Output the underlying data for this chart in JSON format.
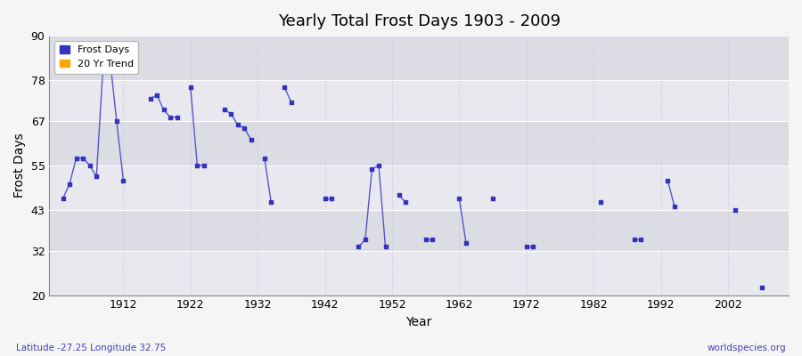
{
  "title": "Yearly Total Frost Days 1903 - 2009",
  "xlabel": "Year",
  "ylabel": "Frost Days",
  "lat_lon_label": "Latitude -27.25 Longitude 32.75",
  "watermark": "worldspecies.org",
  "ylim": [
    20,
    90
  ],
  "xlim": [
    1901,
    2011
  ],
  "yticks": [
    20,
    32,
    43,
    55,
    67,
    78,
    90
  ],
  "xticks": [
    1912,
    1922,
    1932,
    1942,
    1952,
    1962,
    1972,
    1982,
    1992,
    2002
  ],
  "line_color": "#5555cc",
  "marker_color": "#3333bb",
  "bg_color": "#e8e8ee",
  "bg_band_light": "#ebebf0",
  "bg_band_dark": "#dcdce4",
  "grid_color": "#ffffff",
  "segments": [
    {
      "years": [
        1903,
        1904,
        1905,
        1906,
        1907,
        1908,
        1909,
        1910,
        1911,
        1912
      ],
      "values": [
        46,
        50,
        57,
        57,
        55,
        52,
        82,
        84,
        67,
        51
      ]
    },
    {
      "years": [
        1916,
        1917,
        1918,
        1919,
        1920
      ],
      "values": [
        73,
        74,
        70,
        68,
        68
      ]
    },
    {
      "years": [
        1922,
        1923,
        1924
      ],
      "values": [
        76,
        55,
        55
      ]
    },
    {
      "years": [
        1927,
        1928,
        1929,
        1930,
        1931
      ],
      "values": [
        70,
        69,
        66,
        65,
        62
      ]
    },
    {
      "years": [
        1933,
        1934
      ],
      "values": [
        57,
        45
      ]
    },
    {
      "years": [
        1936,
        1937
      ],
      "values": [
        76,
        72
      ]
    },
    {
      "years": [
        1942,
        1943
      ],
      "values": [
        46,
        46
      ]
    },
    {
      "years": [
        1947,
        1948,
        1949,
        1950,
        1951
      ],
      "values": [
        33,
        35,
        54,
        55,
        33
      ]
    },
    {
      "years": [
        1953,
        1954
      ],
      "values": [
        47,
        45
      ]
    },
    {
      "years": [
        1957,
        1958
      ],
      "values": [
        35,
        35
      ]
    },
    {
      "years": [
        1962,
        1963
      ],
      "values": [
        46,
        34
      ]
    },
    {
      "years": [
        1967
      ],
      "values": [
        46
      ]
    },
    {
      "years": [
        1972,
        1973
      ],
      "values": [
        33,
        33
      ]
    },
    {
      "years": [
        1983
      ],
      "values": [
        45
      ]
    },
    {
      "years": [
        1988,
        1989
      ],
      "values": [
        35,
        35
      ]
    },
    {
      "years": [
        1993,
        1994
      ],
      "values": [
        51,
        44
      ]
    },
    {
      "years": [
        2003
      ],
      "values": [
        43
      ]
    },
    {
      "years": [
        2007
      ],
      "values": [
        22
      ]
    }
  ]
}
